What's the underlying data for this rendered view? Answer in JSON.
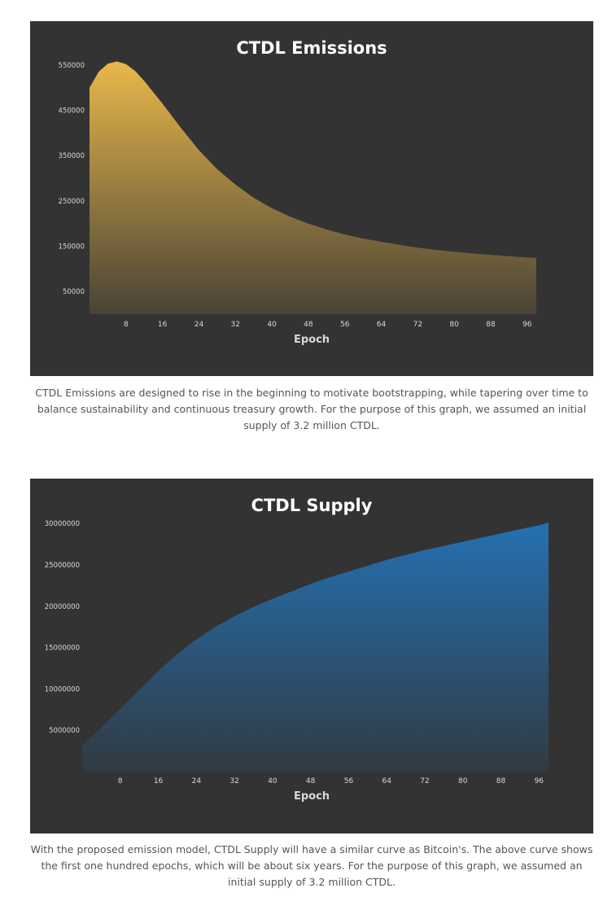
{
  "chart_data": [
    {
      "type": "area",
      "title": "CTDL Emissions",
      "xlabel": "Epoch",
      "ylabel": "",
      "x_ticks": [
        8,
        16,
        24,
        32,
        40,
        48,
        56,
        64,
        72,
        80,
        88,
        96
      ],
      "y_ticks": [
        50000,
        150000,
        250000,
        350000,
        450000,
        550000
      ],
      "xlim": [
        0,
        98
      ],
      "ylim": [
        0,
        575000
      ],
      "color": "#e8b84a",
      "x": [
        0,
        2,
        4,
        6,
        8,
        10,
        12,
        16,
        20,
        24,
        28,
        32,
        36,
        40,
        44,
        48,
        52,
        56,
        60,
        64,
        68,
        72,
        76,
        80,
        84,
        88,
        92,
        96,
        98
      ],
      "values": [
        500000,
        535000,
        553000,
        558000,
        552000,
        537000,
        515000,
        465000,
        412000,
        362000,
        320000,
        286000,
        257000,
        234000,
        215000,
        200000,
        187000,
        176000,
        167000,
        160000,
        153000,
        147000,
        142000,
        138000,
        134000,
        131000,
        128000,
        125000,
        124000
      ]
    },
    {
      "type": "area",
      "title": "CTDL Supply",
      "xlabel": "Epoch",
      "ylabel": "",
      "x_ticks": [
        8,
        16,
        24,
        32,
        40,
        48,
        56,
        64,
        72,
        80,
        88,
        96
      ],
      "y_ticks": [
        5000000,
        10000000,
        15000000,
        20000000,
        25000000,
        30000000
      ],
      "xlim": [
        0,
        98
      ],
      "ylim": [
        0,
        31500000
      ],
      "color": "#2471b2",
      "x": [
        0,
        4,
        8,
        12,
        16,
        20,
        24,
        28,
        32,
        36,
        40,
        44,
        48,
        52,
        56,
        60,
        64,
        68,
        72,
        76,
        80,
        84,
        88,
        92,
        96,
        98
      ],
      "values": [
        3200000,
        5300000,
        7600000,
        9900000,
        12200000,
        14200000,
        16000000,
        17500000,
        18800000,
        19900000,
        20900000,
        21800000,
        22700000,
        23500000,
        24200000,
        24900000,
        25600000,
        26200000,
        26800000,
        27300000,
        27800000,
        28300000,
        28800000,
        29300000,
        29800000,
        30100000
      ]
    }
  ],
  "captions": [
    "CTDL Emissions are designed to rise in the beginning to motivate bootstrapping, while tapering over time to balance sustainability and continuous treasury growth. For the purpose of this graph, we assumed an initial supply of 3.2 million CTDL.",
    "With the proposed emission model, CTDL Supply will have a similar curve as Bitcoin's. The above curve shows the first one hundred epochs, which will be about six years. For the purpose of this graph, we assumed an initial supply of 3.2 million CTDL."
  ]
}
